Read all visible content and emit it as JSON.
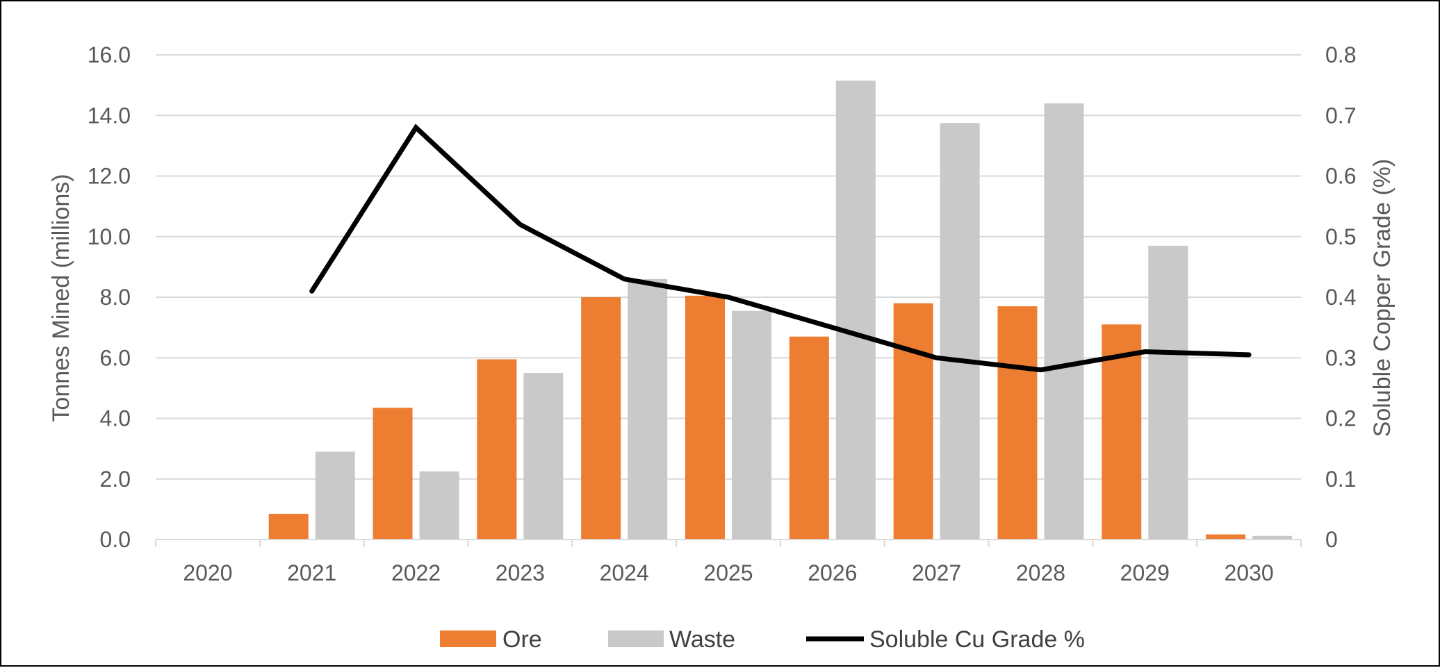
{
  "chart_data": {
    "type": "bar",
    "categories": [
      "2020",
      "2021",
      "2022",
      "2023",
      "2024",
      "2025",
      "2026",
      "2027",
      "2028",
      "2029",
      "2030"
    ],
    "series": [
      {
        "name": "Ore",
        "kind": "bar",
        "axis": "left",
        "color": "#ED7D31",
        "values": [
          0.0,
          0.85,
          4.35,
          5.95,
          8.0,
          8.05,
          6.7,
          7.8,
          7.7,
          7.1,
          0.17
        ]
      },
      {
        "name": "Waste",
        "kind": "bar",
        "axis": "left",
        "color": "#C9C9C9",
        "values": [
          0.0,
          2.9,
          2.25,
          5.5,
          8.6,
          7.55,
          15.15,
          13.75,
          14.4,
          9.7,
          0.12
        ]
      },
      {
        "name": "Soluble Cu Grade %",
        "kind": "line",
        "axis": "right",
        "color": "#000000",
        "values": [
          null,
          0.41,
          0.68,
          0.52,
          0.43,
          0.4,
          0.35,
          0.3,
          0.28,
          0.31,
          0.305
        ]
      }
    ],
    "ylabel": "Tonnes Mined (millions)",
    "y2label": "Soluble Copper Grade (%)",
    "ylim": [
      0,
      16
    ],
    "y2lim": [
      0,
      0.8
    ],
    "yticks": [
      "0.0",
      "2.0",
      "4.0",
      "6.0",
      "8.0",
      "10.0",
      "12.0",
      "14.0",
      "16.0"
    ],
    "y2ticks": [
      "0",
      "0.1",
      "0.2",
      "0.3",
      "0.4",
      "0.5",
      "0.6",
      "0.7",
      "0.8"
    ],
    "grid": true,
    "legend_position": "bottom"
  }
}
